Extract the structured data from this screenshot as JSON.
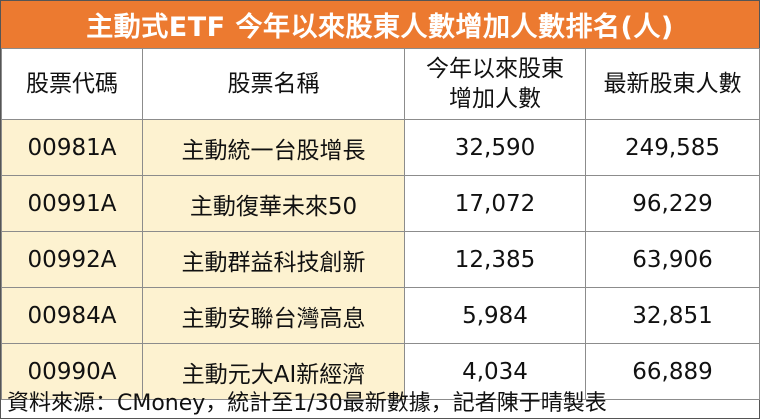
{
  "title": "主動式ETF 今年以來股東人數增加人數排名(人)",
  "headers": [
    "股票代碼",
    "股票名稱",
    "今年以來股東\n增加人數",
    "最新股東人數"
  ],
  "rows": [
    {
      "code": "00981A",
      "name": "主動統一台股增長",
      "increase": "32,590",
      "holders": "249,585"
    },
    {
      "code": "00991A",
      "name": "主動復華未來50",
      "increase": "17,072",
      "holders": "96,229"
    },
    {
      "code": "00992A",
      "name": "主動群益科技創新",
      "increase": "12,385",
      "holders": "63,906"
    },
    {
      "code": "00984A",
      "name": "主動安聯台灣高息",
      "increase": "5,984",
      "holders": "32,851"
    },
    {
      "code": "00990A",
      "name": "主動元大AI新經濟",
      "increase": "4,034",
      "holders": "66,889"
    }
  ],
  "source": "資料來源：CMoney，統計至1/30最新數據，記者陳于晴製表",
  "colors": {
    "title_bg": "#ec7a30",
    "highlight_bg": "#fdf2d0",
    "border": "#8c8c8c"
  }
}
